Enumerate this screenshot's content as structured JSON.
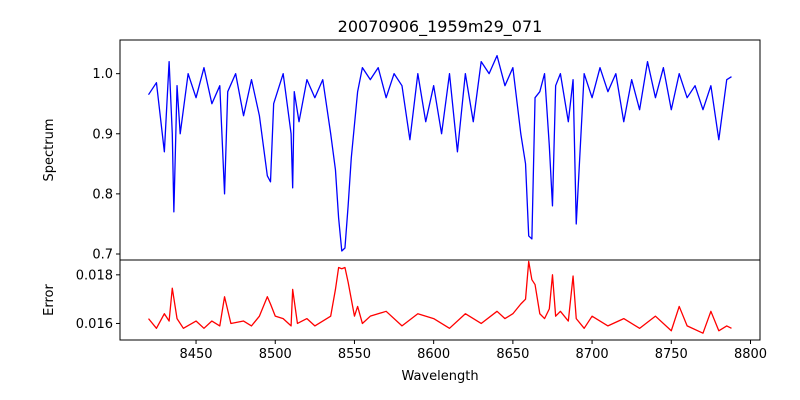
{
  "chart_data": {
    "type": "line",
    "title": "20070906_1959m29_071",
    "xlabel": "Wavelength",
    "xticks": [
      "8450",
      "8500",
      "8550",
      "8600",
      "8650",
      "8700",
      "8750",
      "8800"
    ],
    "xlim": [
      8402,
      8806
    ],
    "panels": [
      {
        "name": "spectrum",
        "ylabel": "Spectrum",
        "ylim": [
          0.69,
          1.056
        ],
        "yticks": [
          "0.7",
          "0.8",
          "0.9",
          "1.0"
        ],
        "series": [
          {
            "color": "#0000ff",
            "x": [
              8420,
              8425,
              8430,
              8433,
              8435,
              8436,
              8438,
              8440,
              8445,
              8450,
              8455,
              8460,
              8465,
              8468,
              8470,
              8475,
              8480,
              8485,
              8490,
              8495,
              8497,
              8499,
              8505,
              8510,
              8511,
              8512,
              8515,
              8520,
              8525,
              8530,
              8535,
              8538,
              8540,
              8542,
              8544,
              8546,
              8548,
              8552,
              8555,
              8560,
              8565,
              8570,
              8575,
              8580,
              8585,
              8590,
              8595,
              8600,
              8605,
              8610,
              8615,
              8620,
              8625,
              8630,
              8635,
              8640,
              8645,
              8650,
              8655,
              8658,
              8660,
              8662,
              8664,
              8667,
              8670,
              8673,
              8675,
              8677,
              8680,
              8685,
              8688,
              8690,
              8695,
              8700,
              8705,
              8710,
              8715,
              8720,
              8725,
              8730,
              8735,
              8740,
              8745,
              8750,
              8755,
              8760,
              8765,
              8770,
              8775,
              8780,
              8785,
              8788
            ],
            "y": [
              0.965,
              0.985,
              0.87,
              1.02,
              0.9,
              0.77,
              0.98,
              0.9,
              1.0,
              0.96,
              1.01,
              0.95,
              0.98,
              0.8,
              0.97,
              1.0,
              0.93,
              0.99,
              0.93,
              0.83,
              0.82,
              0.95,
              1.0,
              0.9,
              0.81,
              0.97,
              0.92,
              0.99,
              0.96,
              0.99,
              0.9,
              0.84,
              0.76,
              0.705,
              0.71,
              0.78,
              0.86,
              0.97,
              1.01,
              0.99,
              1.01,
              0.96,
              1.0,
              0.98,
              0.89,
              1.0,
              0.92,
              0.98,
              0.9,
              1.0,
              0.87,
              1.0,
              0.92,
              1.02,
              1.0,
              1.03,
              0.98,
              1.01,
              0.9,
              0.85,
              0.73,
              0.725,
              0.96,
              0.97,
              1.0,
              0.88,
              0.78,
              0.98,
              1.0,
              0.92,
              0.99,
              0.75,
              1.0,
              0.96,
              1.01,
              0.97,
              1.0,
              0.92,
              0.99,
              0.94,
              1.02,
              0.96,
              1.01,
              0.94,
              1.0,
              0.96,
              0.98,
              0.94,
              0.98,
              0.89,
              0.99,
              0.995
            ]
          }
        ]
      },
      {
        "name": "error",
        "ylabel": "Error",
        "ylim": [
          0.01532,
          0.01861
        ],
        "yticks": [
          "0.016",
          "0.018"
        ],
        "series": [
          {
            "color": "#ff0000",
            "x": [
              8420,
              8425,
              8430,
              8433,
              8435,
              8438,
              8442,
              8450,
              8455,
              8460,
              8465,
              8468,
              8472,
              8480,
              8485,
              8490,
              8495,
              8497,
              8500,
              8505,
              8510,
              8511,
              8514,
              8520,
              8525,
              8530,
              8535,
              8538,
              8540,
              8542,
              8544,
              8546,
              8550,
              8552,
              8555,
              8560,
              8570,
              8580,
              8590,
              8600,
              8610,
              8620,
              8630,
              8640,
              8645,
              8650,
              8655,
              8658,
              8660,
              8662,
              8664,
              8667,
              8670,
              8673,
              8675,
              8677,
              8680,
              8685,
              8688,
              8690,
              8695,
              8700,
              8710,
              8720,
              8730,
              8740,
              8750,
              8755,
              8760,
              8770,
              8775,
              8780,
              8785,
              8788
            ],
            "y": [
              0.0162,
              0.0158,
              0.0164,
              0.0161,
              0.01745,
              0.0162,
              0.0158,
              0.0161,
              0.0158,
              0.0161,
              0.0159,
              0.0171,
              0.016,
              0.0161,
              0.0159,
              0.0163,
              0.0171,
              0.0168,
              0.0163,
              0.0162,
              0.0159,
              0.0174,
              0.016,
              0.0162,
              0.0159,
              0.0161,
              0.0163,
              0.0174,
              0.0183,
              0.01825,
              0.0183,
              0.0177,
              0.0163,
              0.0167,
              0.016,
              0.0163,
              0.0165,
              0.0159,
              0.0164,
              0.0162,
              0.0158,
              0.0164,
              0.016,
              0.0165,
              0.0162,
              0.0164,
              0.0168,
              0.017,
              0.01855,
              0.0178,
              0.0176,
              0.0164,
              0.0162,
              0.0166,
              0.018,
              0.0163,
              0.0165,
              0.0161,
              0.01795,
              0.0162,
              0.0158,
              0.0163,
              0.0159,
              0.0162,
              0.0158,
              0.0163,
              0.0157,
              0.0167,
              0.0159,
              0.0156,
              0.0165,
              0.0157,
              0.0159,
              0.0158
            ]
          }
        ]
      }
    ]
  }
}
